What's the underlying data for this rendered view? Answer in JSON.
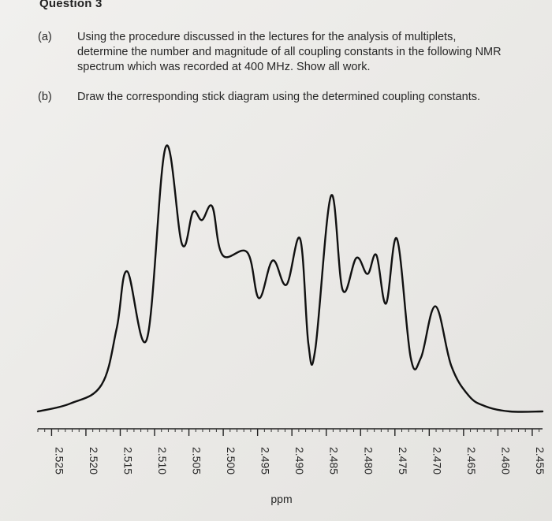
{
  "question": {
    "title": "Question 3",
    "parts": [
      {
        "label": "(a)",
        "lines": [
          "Using the procedure discussed in the lectures for the analysis of multiplets,",
          "determine the number and magnitude of all coupling constants in the following NMR",
          "spectrum which was recorded at 400 MHz. Show all work."
        ]
      },
      {
        "label": "(b)",
        "lines": [
          "Draw the corresponding stick diagram using the determined coupling constants."
        ]
      }
    ]
  },
  "chart_data": {
    "type": "line",
    "title": "",
    "xlabel": "ppm",
    "ylabel": "",
    "x_reversed": true,
    "xlim": [
      2.527,
      2.4535
    ],
    "ticks": [
      "2.525",
      "2.520",
      "2.515",
      "2.510",
      "2.505",
      "2.500",
      "2.495",
      "2.490",
      "2.485",
      "2.480",
      "2.475",
      "2.470",
      "2.465",
      "2.460",
      "2.455"
    ],
    "grid": false,
    "series": [
      {
        "values_note_free": true,
        "x": [
          2.527,
          2.5222,
          2.5177,
          2.5155,
          2.514,
          2.5111,
          2.5084,
          2.506,
          2.5044,
          2.5031,
          2.5016,
          2.5001,
          2.4965,
          2.4948,
          2.4928,
          2.4908,
          2.4888,
          2.4876,
          2.4866,
          2.4843,
          2.4826,
          2.4806,
          2.479,
          2.4777,
          2.4763,
          2.4747,
          2.4727,
          2.4712,
          2.4691,
          2.4668,
          2.4643,
          2.4619,
          2.4583,
          2.4535
        ],
        "y": [
          0.0,
          0.03,
          0.1,
          0.31,
          0.52,
          0.27,
          0.98,
          0.62,
          0.74,
          0.71,
          0.76,
          0.58,
          0.59,
          0.42,
          0.56,
          0.47,
          0.64,
          0.25,
          0.23,
          0.8,
          0.45,
          0.57,
          0.51,
          0.58,
          0.4,
          0.64,
          0.2,
          0.2,
          0.39,
          0.17,
          0.06,
          0.02,
          0.0,
          0.0
        ]
      }
    ]
  }
}
